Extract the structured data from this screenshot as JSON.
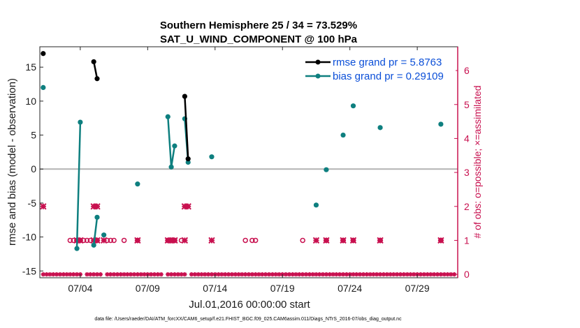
{
  "chart_data": {
    "type": "line",
    "title": "Southern Hemisphere 25 / 34 = 73.529%",
    "subtitle": "SAT_U_WIND_COMPONENT @ 100 hPa",
    "xlabel": "Jul.01,2016 00:00:00 start",
    "ylabel": "rmse and bias (model - observation)",
    "y2label": "# of obs: o=possible; ×=assimilated",
    "footnote": "data file: /Users/raeder/DAI/ATM_forcXX/CAM6_setup/f.e21.FHIST_BGC.f09_025.CAM6assim.011/Diags_NTrS_2016-07/obs_diag_output.nc",
    "xlim": [
      1.0,
      32.0
    ],
    "ylim": [
      -16,
      18
    ],
    "y2lim": [
      -0.1,
      6.7
    ],
    "xticks": [
      4,
      9,
      14,
      19,
      24,
      29
    ],
    "xtick_labels": [
      "07/04",
      "07/09",
      "07/14",
      "07/19",
      "07/24",
      "07/29"
    ],
    "yticks": [
      -15,
      -10,
      -5,
      0,
      5,
      10,
      15
    ],
    "ytick_labels": [
      "-15",
      "-10",
      "-5",
      "0",
      "5",
      "10",
      "15"
    ],
    "y2ticks": [
      0,
      1,
      2,
      3,
      4,
      5,
      6
    ],
    "y2tick_labels": [
      "0",
      "1",
      "2",
      "3",
      "4",
      "5",
      "6"
    ],
    "zero_line": 0,
    "legend": {
      "position": "top-right",
      "entries": [
        "rmse grand pr = 5.8763",
        "bias grand pr = 0.29109"
      ]
    },
    "series": [
      {
        "name": "rmse",
        "color": "#000000",
        "segments": [
          [
            [
              1.25,
              17.0
            ]
          ],
          [
            [
              5.0,
              15.8
            ],
            [
              5.25,
              13.3
            ]
          ],
          [
            [
              11.75,
              10.7
            ],
            [
              12.0,
              1.5
            ]
          ]
        ]
      },
      {
        "name": "bias",
        "color": "#0e7f7f",
        "segments": [
          [
            [
              1.25,
              12.0
            ]
          ],
          [
            [
              3.75,
              -11.7
            ],
            [
              4.0,
              6.9
            ]
          ],
          [
            [
              5.0,
              -11.2
            ],
            [
              5.25,
              -7.1
            ]
          ],
          [
            [
              5.75,
              -9.7
            ]
          ],
          [
            [
              8.25,
              -2.2
            ]
          ],
          [
            [
              10.5,
              7.7
            ],
            [
              10.75,
              0.3
            ],
            [
              11.0,
              3.4
            ]
          ],
          [
            [
              11.75,
              7.4
            ],
            [
              12.0,
              1.0
            ]
          ],
          [
            [
              13.75,
              1.8
            ]
          ],
          [
            [
              21.5,
              -5.3
            ]
          ],
          [
            [
              22.25,
              -0.1
            ]
          ],
          [
            [
              23.5,
              5.0
            ]
          ],
          [
            [
              24.25,
              9.3
            ]
          ],
          [
            [
              26.25,
              6.1
            ]
          ],
          [
            [
              30.75,
              6.6
            ]
          ]
        ]
      }
    ],
    "obs_possible": {
      "color": "#c8104f",
      "points": [
        [
          3.25,
          1
        ],
        [
          3.5,
          1
        ],
        [
          3.75,
          1
        ],
        [
          4.0,
          1
        ],
        [
          4.25,
          1
        ],
        [
          4.5,
          1
        ],
        [
          4.75,
          1
        ],
        [
          5.25,
          1
        ],
        [
          6.0,
          1
        ],
        [
          6.25,
          1
        ],
        [
          6.5,
          1
        ],
        [
          7.25,
          1
        ],
        [
          8.25,
          1
        ],
        [
          10.5,
          1
        ],
        [
          10.75,
          1
        ],
        [
          11.0,
          1
        ],
        [
          11.5,
          1
        ],
        [
          16.25,
          1
        ],
        [
          16.75,
          1
        ],
        [
          17.0,
          1
        ],
        [
          20.5,
          1
        ],
        [
          22.25,
          1
        ],
        [
          23.5,
          1
        ],
        [
          24.25,
          1
        ],
        [
          26.25,
          1
        ],
        [
          30.75,
          1
        ]
      ]
    },
    "obs_assimilated": {
      "color": "#c8104f",
      "points": [
        [
          1.25,
          2
        ],
        [
          5.0,
          2
        ],
        [
          5.25,
          2
        ],
        [
          11.75,
          2
        ],
        [
          12.0,
          2
        ],
        [
          3.75,
          1
        ],
        [
          4.0,
          1
        ],
        [
          5.0,
          1
        ],
        [
          5.25,
          1
        ],
        [
          5.75,
          1
        ],
        [
          8.25,
          1
        ],
        [
          10.5,
          1
        ],
        [
          10.75,
          1
        ],
        [
          11.0,
          1
        ],
        [
          11.75,
          1
        ],
        [
          13.75,
          1
        ],
        [
          21.5,
          1
        ],
        [
          22.25,
          1
        ],
        [
          23.5,
          1
        ],
        [
          24.25,
          1
        ],
        [
          26.25,
          1
        ],
        [
          30.75,
          1
        ]
      ]
    },
    "obs_zero_days": [
      1.25,
      1.5,
      1.75,
      2.0,
      2.25,
      2.5,
      2.75,
      3.0,
      3.25,
      3.5,
      3.75,
      4.0,
      4.5,
      4.75,
      5.0,
      5.25,
      5.5,
      6.0,
      6.25,
      6.5,
      6.75,
      7.0,
      7.25,
      7.5,
      7.75,
      8.0,
      8.25,
      8.5,
      8.75,
      9.0,
      9.25,
      9.5,
      9.75,
      10.0,
      10.5,
      10.75,
      11.0,
      11.25,
      11.5,
      11.75,
      12.25,
      12.5,
      12.75,
      13.0,
      13.25,
      13.5,
      13.75,
      14.0,
      14.25,
      14.5,
      14.75,
      15.0,
      15.25,
      15.5,
      15.75,
      16.0,
      16.25,
      16.5,
      16.75,
      17.0,
      17.25,
      17.5,
      17.75,
      18.0,
      18.25,
      18.5,
      18.75,
      19.0,
      19.25,
      19.5,
      19.75,
      20.0,
      20.25,
      20.5,
      20.75,
      21.0,
      21.25,
      21.5,
      21.75,
      22.0,
      22.25,
      22.5,
      22.75,
      23.0,
      23.25,
      23.5,
      23.75,
      24.0,
      24.25,
      24.5,
      24.75,
      25.0,
      25.25,
      25.5,
      25.75,
      26.0,
      26.25,
      26.5,
      26.75,
      27.0,
      27.25,
      27.5,
      27.75,
      28.0,
      28.25,
      28.5,
      28.75,
      29.0,
      29.25,
      29.5,
      29.75,
      30.0,
      30.25,
      30.5,
      30.75,
      31.0,
      31.25,
      31.5,
      31.75
    ]
  }
}
